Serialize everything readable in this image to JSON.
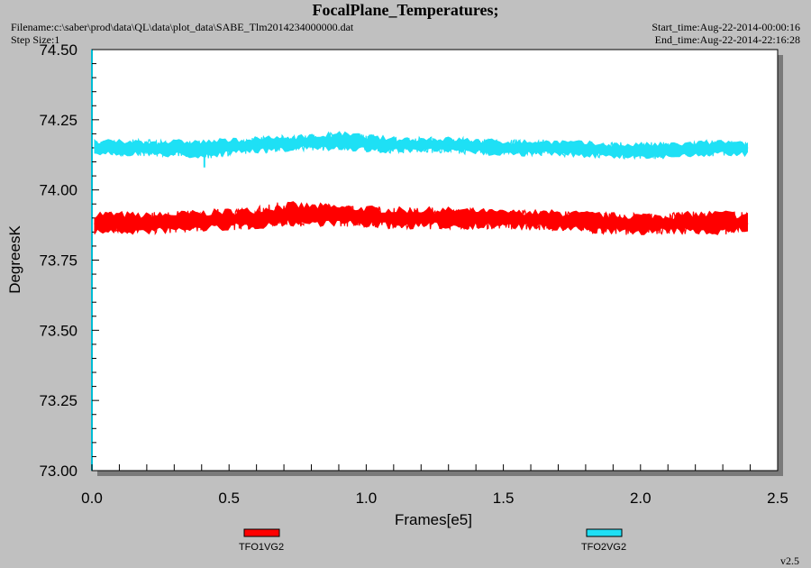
{
  "header": {
    "title": "FocalPlane_Temperatures;",
    "filename": "Filename:c:\\saber\\prod\\data\\QL\\data\\plot_data\\SABE_Tlm2014234000000.dat",
    "step_size": "Step Size:1",
    "start_time": "Start_time:Aug-22-2014-00:00:16",
    "end_time": "End_time:Aug-22-2014-22:16:28"
  },
  "version": "v2.5",
  "colors": {
    "background": "#c0c0c0",
    "plot_area": "#ffffff",
    "axis": "#00bcd4"
  },
  "chart_data": {
    "type": "line",
    "title": "FocalPlane_Temperatures;",
    "xlabel": "Frames[e5]",
    "ylabel": "DegreesK",
    "xlim": [
      0,
      2.5
    ],
    "ylim": [
      73.0,
      74.5
    ],
    "x_ticks": [
      "0.0",
      "0.5",
      "1.0",
      "1.5",
      "2.0",
      "2.5"
    ],
    "y_ticks": [
      "73.00",
      "73.25",
      "73.50",
      "73.75",
      "74.00",
      "74.25",
      "74.50"
    ],
    "grid": false,
    "legend": "bottom",
    "series": [
      {
        "name": "TFO1VG2",
        "color": "#ff0000",
        "x": [
          0.01,
          0.2,
          0.4,
          0.6,
          0.7,
          0.9,
          1.1,
          1.3,
          1.5,
          1.7,
          1.9,
          2.1,
          2.3,
          2.39
        ],
        "y": [
          73.88,
          73.88,
          73.89,
          73.9,
          73.91,
          73.91,
          73.9,
          73.9,
          73.9,
          73.89,
          73.88,
          73.88,
          73.88,
          73.88
        ],
        "min": [
          73.84,
          73.84,
          73.85,
          73.86,
          73.87,
          73.87,
          73.86,
          73.86,
          73.86,
          73.85,
          73.84,
          73.84,
          73.84,
          73.85
        ],
        "max": [
          73.93,
          73.92,
          73.93,
          73.94,
          73.96,
          73.95,
          73.94,
          73.94,
          73.93,
          73.93,
          73.92,
          73.92,
          73.93,
          73.92
        ]
      },
      {
        "name": "TFO2VG2",
        "color": "#1ee0f5",
        "x": [
          0.01,
          0.2,
          0.4,
          0.6,
          0.8,
          0.9,
          1.1,
          1.3,
          1.5,
          1.7,
          1.9,
          2.1,
          2.3,
          2.39
        ],
        "y": [
          74.15,
          74.15,
          74.15,
          74.16,
          74.17,
          74.17,
          74.16,
          74.16,
          74.15,
          74.15,
          74.14,
          74.14,
          74.15,
          74.15
        ],
        "min": [
          74.12,
          74.12,
          74.11,
          74.13,
          74.14,
          74.14,
          74.13,
          74.13,
          74.12,
          74.12,
          74.11,
          74.11,
          74.12,
          74.12
        ],
        "max": [
          74.18,
          74.18,
          74.18,
          74.19,
          74.2,
          74.21,
          74.19,
          74.19,
          74.18,
          74.18,
          74.17,
          74.17,
          74.18,
          74.17
        ]
      }
    ]
  }
}
